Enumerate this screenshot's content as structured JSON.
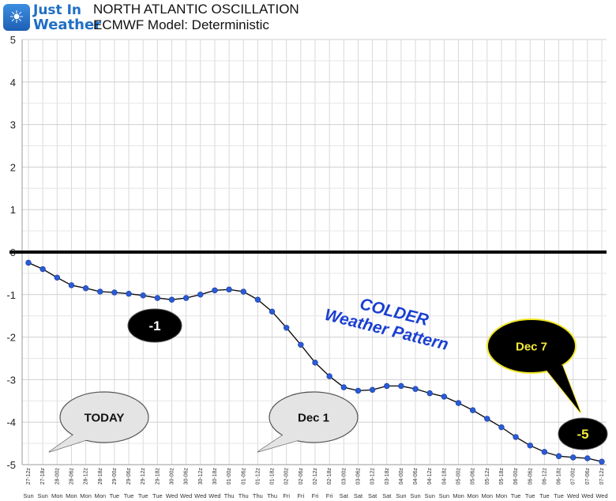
{
  "logo": {
    "line1": "Just In",
    "line2": "Weather",
    "icon": "sun-snowflake-icon"
  },
  "header": {
    "title": "NORTH ATLANTIC OSCILLATION",
    "subtitle": "ECMWF Model: Deterministic"
  },
  "chart_data": {
    "type": "line",
    "title": "NORTH ATLANTIC OSCILLATION",
    "subtitle": "ECMWF Model: Deterministic",
    "ylim": [
      -5,
      5
    ],
    "yticks": [
      5,
      4,
      3,
      2,
      1,
      0,
      -1,
      -2,
      -3,
      -4,
      -5
    ],
    "grid": true,
    "zero_line": true,
    "x_time_labels": [
      "27-12z",
      "27-18z",
      "28-00z",
      "28-06z",
      "28-12z",
      "28-18z",
      "29-00z",
      "29-06z",
      "29-12z",
      "29-18z",
      "30-00z",
      "30-06z",
      "30-12z",
      "30-18z",
      "01-00z",
      "01-06z",
      "01-12z",
      "01-18z",
      "02-00z",
      "02-06z",
      "02-12z",
      "02-18z",
      "03-00z",
      "03-06z",
      "03-12z",
      "03-18z",
      "04-00z",
      "04-06z",
      "04-12z",
      "04-18z",
      "05-00z",
      "05-06z",
      "05-12z",
      "05-18z",
      "06-00z",
      "06-06z",
      "06-12z",
      "06-18z",
      "07-00z",
      "07-06z",
      "07-12z"
    ],
    "x_day_labels": [
      "Sun",
      "Sun",
      "Mon",
      "Mon",
      "Mon",
      "Mon",
      "Tue",
      "Tue",
      "Tue",
      "Tue",
      "Wed",
      "Wed",
      "Wed",
      "Wed",
      "Thu",
      "Thu",
      "Thu",
      "Thu",
      "Fri",
      "Fri",
      "Fri",
      "Fri",
      "Sat",
      "Sat",
      "Sat",
      "Sat",
      "Sun",
      "Sun",
      "Sun",
      "Sun",
      "Mon",
      "Mon",
      "Mon",
      "Mon",
      "Tue",
      "Tue",
      "Tue",
      "Tue",
      "Wed",
      "Wed",
      "Wed"
    ],
    "series": [
      {
        "color": "#2a5bd7",
        "line_color": "#111111",
        "values": [
          -0.25,
          -0.4,
          -0.6,
          -0.78,
          -0.85,
          -0.93,
          -0.95,
          -0.98,
          -1.02,
          -1.08,
          -1.12,
          -1.08,
          -1.0,
          -0.9,
          -0.88,
          -0.93,
          -1.12,
          -1.4,
          -1.78,
          -2.18,
          -2.6,
          -2.92,
          -3.18,
          -3.26,
          -3.24,
          -3.15,
          -3.15,
          -3.22,
          -3.32,
          -3.4,
          -3.55,
          -3.72,
          -3.92,
          -4.12,
          -4.35,
          -4.55,
          -4.7,
          -4.8,
          -4.83,
          -4.85,
          -4.93
        ]
      }
    ],
    "annotations": [
      {
        "id": "today",
        "text": "TODAY",
        "style": "speech-bubble-gray"
      },
      {
        "id": "dec1",
        "text": "Dec 1",
        "style": "speech-bubble-gray"
      },
      {
        "id": "minus1",
        "text": "-1",
        "style": "black-oval"
      },
      {
        "id": "minus5",
        "text": "-5",
        "style": "black-oval-yellow-text"
      },
      {
        "id": "dec7",
        "text": "Dec 7",
        "style": "black-bubble-yellow-border"
      },
      {
        "id": "colder",
        "line1": "COLDER",
        "line2": "Weather Pattern",
        "color": "#1a3fd1"
      }
    ]
  }
}
